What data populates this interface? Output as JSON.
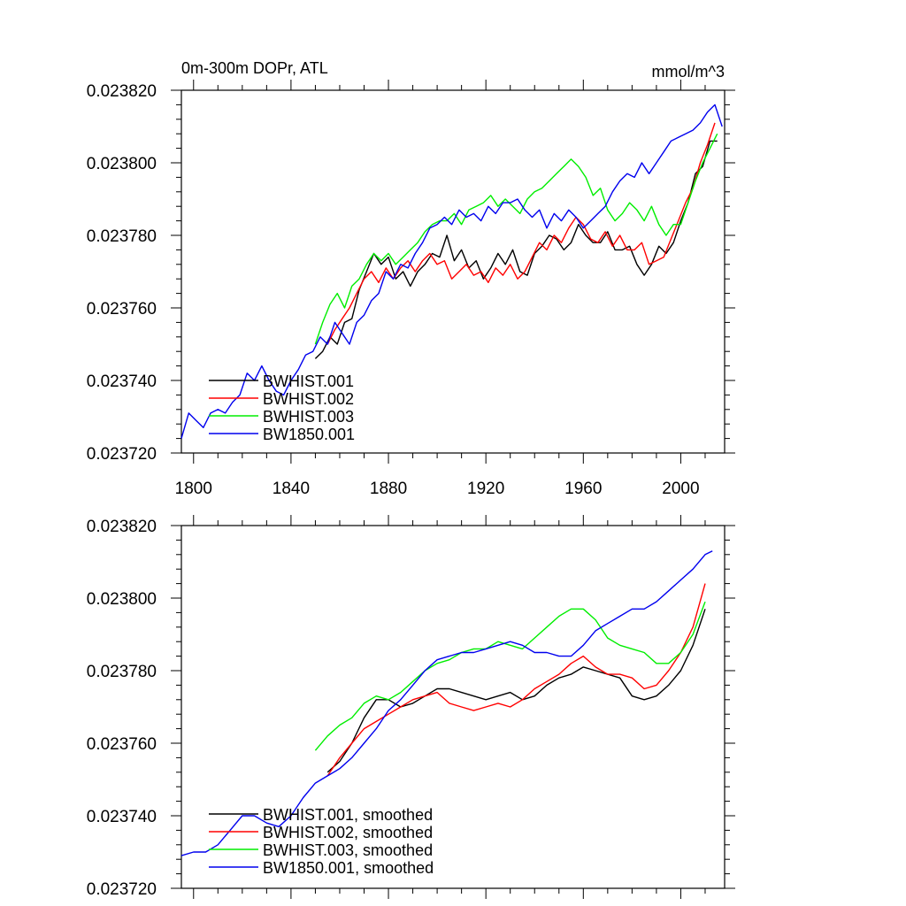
{
  "chart_data": [
    {
      "type": "line",
      "title": "0m-300m DOPr, ATL",
      "units": "mmol/m^3",
      "xlabel": "",
      "ylabel": "",
      "xlim": [
        1795,
        2018
      ],
      "ylim": [
        0.02372,
        0.02382
      ],
      "x_ticks": [
        "1800",
        "1840",
        "1880",
        "1920",
        "1960",
        "2000"
      ],
      "y_ticks": [
        "0.023720",
        "0.023740",
        "0.023760",
        "0.023780",
        "0.023800",
        "0.023820"
      ],
      "legend_position": "lower-left",
      "series": [
        {
          "name": "BWHIST.001",
          "color": "#000000",
          "x": [
            1850,
            1853,
            1856,
            1859,
            1862,
            1865,
            1868,
            1871,
            1874,
            1877,
            1880,
            1883,
            1886,
            1889,
            1892,
            1895,
            1898,
            1901,
            1904,
            1907,
            1910,
            1913,
            1916,
            1919,
            1922,
            1925,
            1928,
            1931,
            1934,
            1937,
            1940,
            1943,
            1946,
            1949,
            1952,
            1955,
            1958,
            1961,
            1964,
            1967,
            1970,
            1973,
            1976,
            1979,
            1982,
            1985,
            1988,
            1991,
            1994,
            1997,
            2000,
            2003,
            2006,
            2009,
            2012,
            2015
          ],
          "values": [
            0.023746,
            0.023748,
            0.023752,
            0.02375,
            0.023756,
            0.023757,
            0.023765,
            0.02377,
            0.023775,
            0.023772,
            0.023774,
            0.023768,
            0.02377,
            0.023766,
            0.02377,
            0.023772,
            0.023775,
            0.023774,
            0.02378,
            0.023773,
            0.023776,
            0.023771,
            0.023773,
            0.023768,
            0.023771,
            0.023775,
            0.023772,
            0.023776,
            0.02377,
            0.023769,
            0.023775,
            0.023777,
            0.02378,
            0.023779,
            0.023776,
            0.023778,
            0.023783,
            0.02378,
            0.023778,
            0.023778,
            0.023781,
            0.023776,
            0.023776,
            0.023777,
            0.023772,
            0.023769,
            0.023772,
            0.023777,
            0.023775,
            0.023778,
            0.023784,
            0.023789,
            0.023797,
            0.023799,
            0.023806,
            0.023806
          ]
        },
        {
          "name": "BWHIST.002",
          "color": "#ff0000",
          "x": [
            1855,
            1858,
            1861,
            1864,
            1867,
            1870,
            1873,
            1876,
            1879,
            1882,
            1885,
            1888,
            1891,
            1894,
            1897,
            1900,
            1903,
            1906,
            1909,
            1912,
            1915,
            1918,
            1921,
            1924,
            1927,
            1930,
            1933,
            1936,
            1939,
            1942,
            1945,
            1948,
            1951,
            1954,
            1957,
            1960,
            1963,
            1966,
            1969,
            1972,
            1975,
            1978,
            1981,
            1984,
            1987,
            1990,
            1993,
            1996,
            1999,
            2002,
            2005,
            2008,
            2011,
            2014
          ],
          "values": [
            0.02375,
            0.023754,
            0.023757,
            0.02376,
            0.023764,
            0.023768,
            0.02377,
            0.023767,
            0.023771,
            0.023768,
            0.023771,
            0.023773,
            0.02377,
            0.023773,
            0.023775,
            0.023772,
            0.023773,
            0.023768,
            0.02377,
            0.023772,
            0.023769,
            0.02377,
            0.023767,
            0.023771,
            0.023769,
            0.023772,
            0.023768,
            0.02377,
            0.023774,
            0.023778,
            0.023776,
            0.02378,
            0.023778,
            0.023782,
            0.023785,
            0.023783,
            0.023779,
            0.023778,
            0.023781,
            0.023777,
            0.02378,
            0.023776,
            0.023776,
            0.023778,
            0.023772,
            0.023773,
            0.023774,
            0.023779,
            0.023784,
            0.023789,
            0.023793,
            0.0238,
            0.023805,
            0.023811
          ]
        },
        {
          "name": "BWHIST.003",
          "color": "#00ee00",
          "x": [
            1850,
            1853,
            1856,
            1859,
            1862,
            1865,
            1868,
            1871,
            1874,
            1877,
            1880,
            1883,
            1886,
            1889,
            1892,
            1895,
            1898,
            1901,
            1904,
            1907,
            1910,
            1913,
            1916,
            1919,
            1922,
            1925,
            1928,
            1931,
            1934,
            1937,
            1940,
            1943,
            1946,
            1949,
            1952,
            1955,
            1958,
            1961,
            1964,
            1967,
            1970,
            1973,
            1976,
            1979,
            1982,
            1985,
            1988,
            1991,
            1994,
            1997,
            2000,
            2003,
            2006,
            2009,
            2012,
            2015
          ],
          "values": [
            0.02375,
            0.023756,
            0.023761,
            0.023764,
            0.02376,
            0.023766,
            0.023768,
            0.023772,
            0.023775,
            0.023773,
            0.023775,
            0.023772,
            0.023774,
            0.023776,
            0.023778,
            0.023781,
            0.023783,
            0.023784,
            0.023784,
            0.023786,
            0.023783,
            0.023787,
            0.023788,
            0.023789,
            0.023791,
            0.023788,
            0.02379,
            0.023788,
            0.023786,
            0.02379,
            0.023792,
            0.023793,
            0.023795,
            0.023797,
            0.023799,
            0.023801,
            0.023799,
            0.023796,
            0.023791,
            0.023793,
            0.023787,
            0.023784,
            0.023786,
            0.023789,
            0.023787,
            0.023784,
            0.023788,
            0.023783,
            0.02378,
            0.023783,
            0.023783,
            0.023789,
            0.023795,
            0.0238,
            0.023804,
            0.023808
          ]
        },
        {
          "name": "BW1850.001",
          "color": "#0000ee",
          "x": [
            1795,
            1798,
            1801,
            1804,
            1807,
            1810,
            1813,
            1816,
            1819,
            1822,
            1825,
            1828,
            1831,
            1834,
            1837,
            1840,
            1843,
            1846,
            1849,
            1852,
            1855,
            1858,
            1861,
            1864,
            1867,
            1870,
            1873,
            1876,
            1879,
            1882,
            1885,
            1888,
            1891,
            1894,
            1897,
            1900,
            1903,
            1906,
            1909,
            1912,
            1915,
            1918,
            1921,
            1924,
            1927,
            1930,
            1933,
            1936,
            1939,
            1942,
            1945,
            1948,
            1951,
            1954,
            1957,
            1960,
            1963,
            1966,
            1969,
            1972,
            1975,
            1978,
            1981,
            1984,
            1987,
            1990,
            1993,
            1996,
            1999,
            2002,
            2005,
            2008,
            2011,
            2014,
            2017
          ],
          "values": [
            0.023724,
            0.023731,
            0.023729,
            0.023727,
            0.023731,
            0.023732,
            0.023731,
            0.023734,
            0.023736,
            0.023742,
            0.02374,
            0.023744,
            0.02374,
            0.023737,
            0.023736,
            0.02374,
            0.023743,
            0.023747,
            0.023748,
            0.023752,
            0.02375,
            0.023756,
            0.023753,
            0.02375,
            0.023756,
            0.023758,
            0.023762,
            0.023764,
            0.02377,
            0.023768,
            0.023772,
            0.023771,
            0.023775,
            0.023778,
            0.023782,
            0.023783,
            0.023785,
            0.023783,
            0.023787,
            0.023785,
            0.023786,
            0.023784,
            0.023788,
            0.023786,
            0.023789,
            0.023789,
            0.02379,
            0.023787,
            0.023785,
            0.023787,
            0.023782,
            0.023786,
            0.023784,
            0.023787,
            0.023785,
            0.023782,
            0.023784,
            0.023786,
            0.023788,
            0.023792,
            0.023795,
            0.023797,
            0.023796,
            0.0238,
            0.023797,
            0.0238,
            0.023803,
            0.023806,
            0.023807,
            0.023808,
            0.023809,
            0.023811,
            0.023814,
            0.023816,
            0.02381
          ]
        }
      ]
    },
    {
      "type": "line",
      "title": "",
      "xlabel": "",
      "ylabel": "",
      "xlim": [
        1795,
        2018
      ],
      "ylim": [
        0.02372,
        0.02382
      ],
      "x_ticks": [],
      "y_ticks": [
        "0.023720",
        "0.023740",
        "0.023760",
        "0.023780",
        "0.023800",
        "0.023820"
      ],
      "legend_position": "lower-left",
      "series": [
        {
          "name": "BWHIST.001, smoothed",
          "color": "#000000",
          "x": [
            1855,
            1860,
            1865,
            1870,
            1875,
            1880,
            1885,
            1890,
            1895,
            1900,
            1905,
            1910,
            1915,
            1920,
            1925,
            1930,
            1935,
            1940,
            1945,
            1950,
            1955,
            1960,
            1965,
            1970,
            1975,
            1980,
            1985,
            1990,
            1995,
            2000,
            2005,
            2010
          ],
          "values": [
            0.023752,
            0.023755,
            0.02376,
            0.023767,
            0.023772,
            0.023772,
            0.02377,
            0.023771,
            0.023773,
            0.023775,
            0.023775,
            0.023774,
            0.023773,
            0.023772,
            0.023773,
            0.023774,
            0.023772,
            0.023773,
            0.023776,
            0.023778,
            0.023779,
            0.023781,
            0.02378,
            0.023779,
            0.023778,
            0.023773,
            0.023772,
            0.023773,
            0.023776,
            0.02378,
            0.023787,
            0.023797
          ]
        },
        {
          "name": "BWHIST.002, smoothed",
          "color": "#ff0000",
          "x": [
            1855,
            1860,
            1865,
            1870,
            1875,
            1880,
            1885,
            1890,
            1895,
            1900,
            1905,
            1910,
            1915,
            1920,
            1925,
            1930,
            1935,
            1940,
            1945,
            1950,
            1955,
            1960,
            1965,
            1970,
            1975,
            1980,
            1985,
            1990,
            1995,
            2000,
            2005,
            2010
          ],
          "values": [
            0.023751,
            0.023756,
            0.02376,
            0.023764,
            0.023766,
            0.023768,
            0.02377,
            0.023772,
            0.023773,
            0.023774,
            0.023771,
            0.02377,
            0.023769,
            0.02377,
            0.023771,
            0.02377,
            0.023772,
            0.023775,
            0.023777,
            0.023779,
            0.023782,
            0.023784,
            0.023781,
            0.023779,
            0.023779,
            0.023778,
            0.023775,
            0.023776,
            0.02378,
            0.023785,
            0.023792,
            0.023804
          ]
        },
        {
          "name": "BWHIST.003, smoothed",
          "color": "#00ee00",
          "x": [
            1850,
            1855,
            1860,
            1865,
            1870,
            1875,
            1880,
            1885,
            1890,
            1895,
            1900,
            1905,
            1910,
            1915,
            1920,
            1925,
            1930,
            1935,
            1940,
            1945,
            1950,
            1955,
            1960,
            1965,
            1970,
            1975,
            1980,
            1985,
            1990,
            1995,
            2000,
            2005,
            2010
          ],
          "values": [
            0.023758,
            0.023762,
            0.023765,
            0.023767,
            0.023771,
            0.023773,
            0.023772,
            0.023774,
            0.023777,
            0.02378,
            0.023782,
            0.023783,
            0.023785,
            0.023786,
            0.023786,
            0.023788,
            0.023787,
            0.023786,
            0.023789,
            0.023792,
            0.023795,
            0.023797,
            0.023797,
            0.023794,
            0.023789,
            0.023787,
            0.023786,
            0.023785,
            0.023782,
            0.023782,
            0.023785,
            0.02379,
            0.023799
          ]
        },
        {
          "name": "BW1850.001, smoothed",
          "color": "#0000ee",
          "x": [
            1795,
            1800,
            1805,
            1810,
            1815,
            1820,
            1825,
            1830,
            1835,
            1840,
            1845,
            1850,
            1855,
            1860,
            1865,
            1870,
            1875,
            1880,
            1885,
            1890,
            1895,
            1900,
            1905,
            1910,
            1915,
            1920,
            1925,
            1930,
            1935,
            1940,
            1945,
            1950,
            1955,
            1960,
            1965,
            1970,
            1975,
            1980,
            1985,
            1990,
            1995,
            2000,
            2005,
            2010,
            2013
          ],
          "values": [
            0.023729,
            0.02373,
            0.02373,
            0.023732,
            0.023736,
            0.02374,
            0.02374,
            0.023738,
            0.023737,
            0.02374,
            0.023745,
            0.023749,
            0.023751,
            0.023753,
            0.023756,
            0.02376,
            0.023764,
            0.023769,
            0.023772,
            0.023776,
            0.02378,
            0.023783,
            0.023784,
            0.023785,
            0.023785,
            0.023786,
            0.023787,
            0.023788,
            0.023787,
            0.023785,
            0.023785,
            0.023784,
            0.023784,
            0.023787,
            0.023791,
            0.023793,
            0.023795,
            0.023797,
            0.023797,
            0.023799,
            0.023802,
            0.023805,
            0.023808,
            0.023812,
            0.023813
          ]
        }
      ]
    }
  ]
}
